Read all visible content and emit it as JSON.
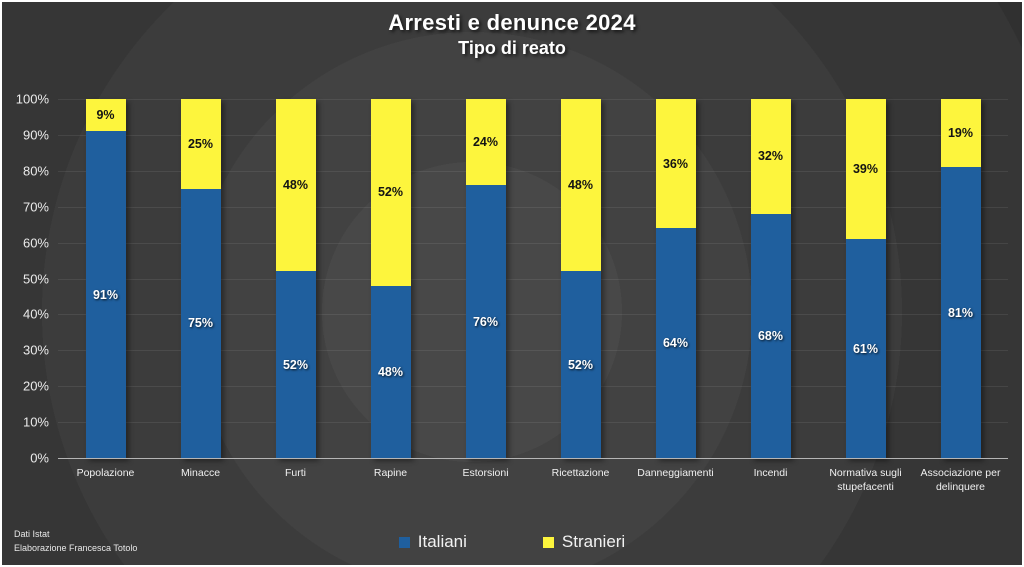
{
  "title": {
    "main": "Arresti e denunce 2024",
    "sub": "Tipo di reato"
  },
  "chart_data": {
    "type": "bar",
    "stacked": true,
    "title": "Arresti e denunce 2024",
    "subtitle": "Tipo di reato",
    "categories": [
      "Popolazione",
      "Minacce",
      "Furti",
      "Rapine",
      "Estorsioni",
      "Ricettazione",
      "Danneggiamenti",
      "Incendi",
      "Normativa sugli stupefacenti",
      "Associazione per delinquere"
    ],
    "series": [
      {
        "name": "Italiani",
        "color": "#1f5f9e",
        "label_color": "#ffffff",
        "values": [
          91,
          75,
          52,
          48,
          76,
          52,
          64,
          68,
          61,
          81
        ]
      },
      {
        "name": "Stranieri",
        "color": "#fdf53d",
        "label_color": "#141414",
        "values": [
          9,
          25,
          48,
          52,
          24,
          48,
          36,
          32,
          39,
          19
        ]
      }
    ],
    "value_suffix": "%",
    "y_ticks": [
      "0%",
      "10%",
      "20%",
      "30%",
      "40%",
      "50%",
      "60%",
      "70%",
      "80%",
      "90%",
      "100%"
    ],
    "ylim": [
      0,
      100
    ],
    "grid": true,
    "legend_position": "bottom"
  },
  "footer": {
    "line1": "Dati Istat",
    "line2": "Elaborazione Francesca Totolo"
  }
}
